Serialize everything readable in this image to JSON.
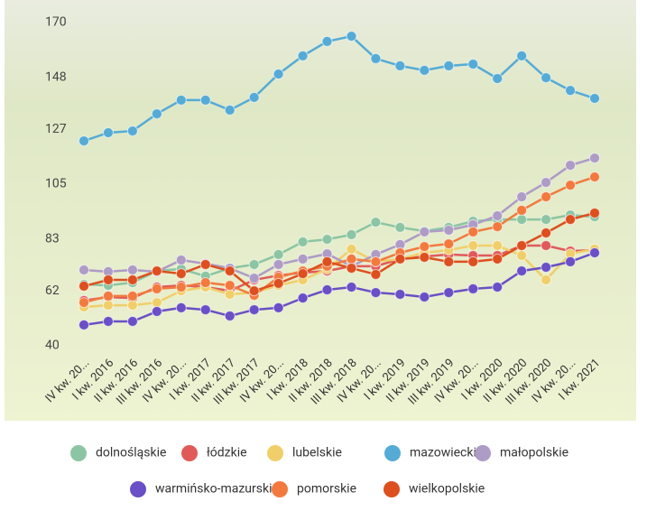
{
  "chart_data": {
    "type": "line",
    "categories": [
      "IV kw. 20...",
      "I kw. 2016",
      "II kw. 2016",
      "III kw. 2016",
      "IV kw. 20...",
      "I kw. 2017",
      "II kw. 2017",
      "III kw. 2017",
      "IV kw. 20...",
      "I kw. 2018",
      "II kw. 2018",
      "III kw. 2018",
      "IV kw. 20...",
      "I kw. 2019",
      "II kw. 2019",
      "III kw. 2019",
      "IV kw. 20...",
      "I kw. 2020",
      "II kw. 2020",
      "III kw. 2020",
      "IV kw. 20...",
      "I kw. 2021"
    ],
    "ylim": [
      40,
      170
    ],
    "yticks": [
      40,
      62,
      83,
      105,
      127,
      148,
      170
    ],
    "grid": false,
    "series": [
      {
        "name": "dolnośląskie",
        "color": "#8cc5a3",
        "values": [
          64.7,
          64.3,
          65.4,
          70.1,
          70.9,
          68.0,
          71.2,
          72.7,
          76.7,
          81.8,
          82.8,
          84.7,
          89.7,
          87.6,
          86.1,
          87.6,
          90.1,
          90.8,
          90.8,
          90.8,
          92.6,
          91.9
        ]
      },
      {
        "name": "łódzkie",
        "color": "#e05a5a",
        "values": [
          58.2,
          59.6,
          59.2,
          63.6,
          64.3,
          63.6,
          62.1,
          66.5,
          68.3,
          69.4,
          70.1,
          72.0,
          72.0,
          74.9,
          75.9,
          76.7,
          76.3,
          76.3,
          80.3,
          80.3,
          78.1,
          78.5
        ]
      },
      {
        "name": "lubelskie",
        "color": "#f0cf6a",
        "values": [
          55.6,
          56.3,
          56.3,
          57.4,
          62.1,
          63.6,
          60.7,
          61.4,
          64.3,
          66.5,
          70.9,
          78.9,
          73.8,
          74.9,
          77.4,
          78.5,
          80.3,
          80.3,
          76.3,
          66.5,
          77.0,
          78.9
        ]
      },
      {
        "name": "mazowieckie",
        "color": "#55abd6",
        "values": [
          122.4,
          125.7,
          126.4,
          133.3,
          138.8,
          138.8,
          134.8,
          139.9,
          149.3,
          156.6,
          162.4,
          164.5,
          155.5,
          152.6,
          150.8,
          152.6,
          153.3,
          147.5,
          156.6,
          147.8,
          142.7,
          139.5
        ]
      },
      {
        "name": "małopolskie",
        "color": "#ae9bc6",
        "values": [
          70.5,
          69.8,
          70.5,
          69.8,
          74.5,
          73.0,
          71.2,
          67.2,
          72.7,
          74.9,
          77.0,
          72.0,
          76.7,
          80.7,
          85.8,
          86.5,
          88.7,
          92.3,
          99.9,
          105.7,
          112.6,
          115.5
        ]
      },
      {
        "name": "warmińsko-mazurskie",
        "color": "#6a4fc6",
        "values": [
          48.4,
          49.8,
          49.8,
          53.8,
          55.3,
          54.5,
          52.0,
          54.5,
          55.3,
          59.2,
          62.5,
          63.6,
          61.4,
          60.7,
          59.6,
          61.4,
          62.9,
          63.6,
          70.1,
          71.6,
          73.8,
          77.4
        ]
      },
      {
        "name": "pomorskie",
        "color": "#f27a3e",
        "values": [
          57.4,
          60.0,
          60.0,
          62.9,
          63.6,
          65.4,
          64.3,
          60.3,
          67.6,
          70.1,
          72.0,
          74.9,
          73.8,
          77.4,
          79.9,
          81.0,
          85.8,
          87.9,
          94.5,
          99.9,
          104.6,
          107.9
        ]
      },
      {
        "name": "wielkopolskie",
        "color": "#dd4f1e",
        "values": [
          64.0,
          66.5,
          66.5,
          70.1,
          69.0,
          72.7,
          70.1,
          62.1,
          65.1,
          69.0,
          73.8,
          71.2,
          68.7,
          74.9,
          75.6,
          73.8,
          73.8,
          74.9,
          80.3,
          85.4,
          90.8,
          93.4
        ]
      }
    ]
  }
}
